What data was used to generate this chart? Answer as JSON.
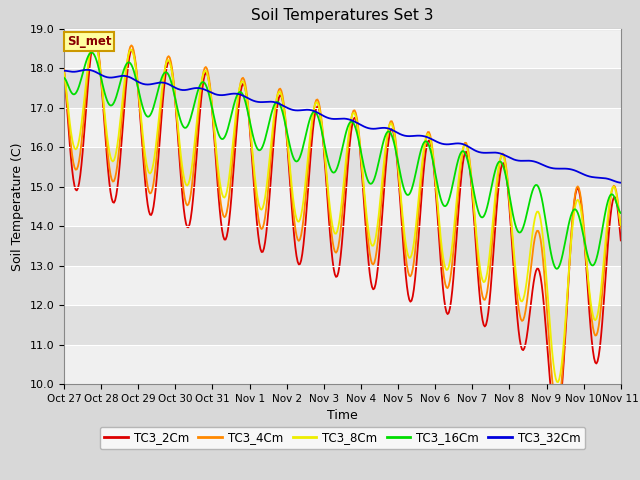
{
  "title": "Soil Temperatures Set 3",
  "xlabel": "Time",
  "ylabel": "Soil Temperature (C)",
  "ylim": [
    10.0,
    19.0
  ],
  "yticks": [
    10.0,
    11.0,
    12.0,
    13.0,
    14.0,
    15.0,
    16.0,
    17.0,
    18.0,
    19.0
  ],
  "xtick_labels": [
    "Oct 27",
    "Oct 28",
    "Oct 29",
    "Oct 30",
    "Oct 31",
    "Nov 1",
    "Nov 2",
    "Nov 3",
    "Nov 4",
    "Nov 5",
    "Nov 6",
    "Nov 7",
    "Nov 8",
    "Nov 9",
    "Nov 10",
    "Nov 11"
  ],
  "series_colors": {
    "TC3_2Cm": "#dd0000",
    "TC3_4Cm": "#ff8800",
    "TC3_8Cm": "#eeee00",
    "TC3_16Cm": "#00dd00",
    "TC3_32Cm": "#0000dd"
  },
  "legend_label": "SI_met",
  "fig_bg": "#d8d8d8",
  "plot_bg_light": "#f0f0f0",
  "plot_bg_dark": "#e0e0e0",
  "n_points": 480
}
